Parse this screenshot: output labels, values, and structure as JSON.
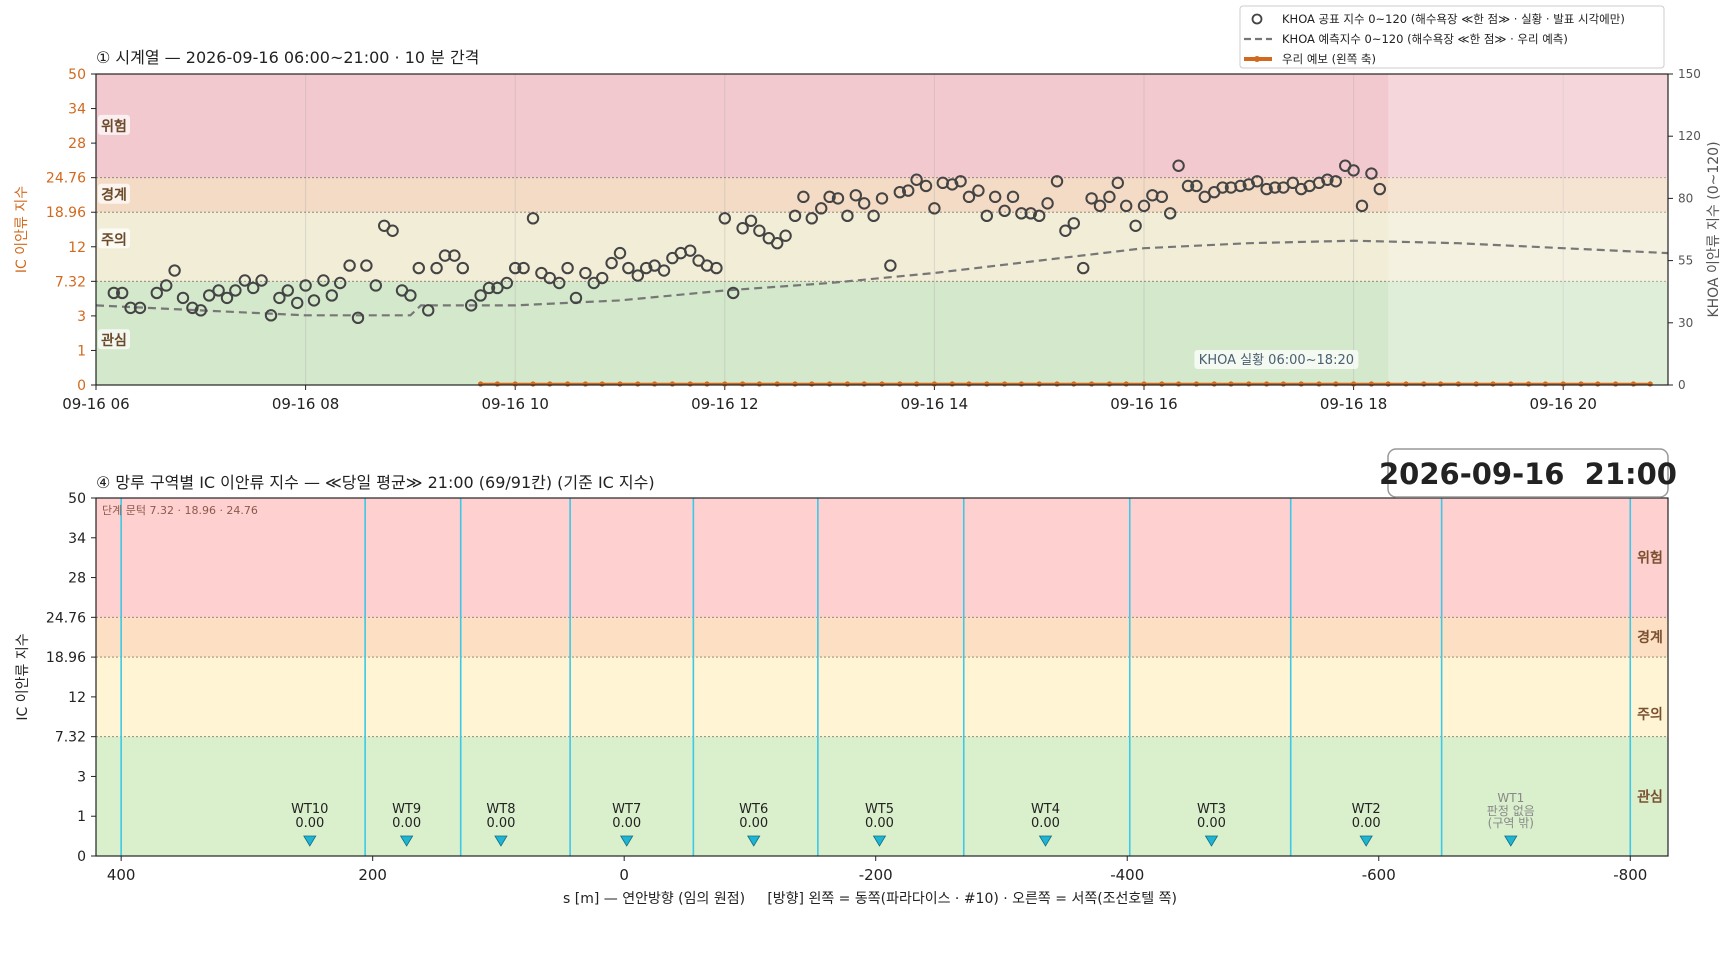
{
  "chart_data": [
    {
      "type": "line",
      "title": "① 시계열 — 2026-09-16 06:00~21:00 · 10 분 간격",
      "ylabel": "IC 이안류 지수",
      "ylabel_right": "KHOA 이안류 지수 (0~120)",
      "x_ticks": [
        "09-16 06",
        "09-16 08",
        "09-16 10",
        "09-16 12",
        "09-16 14",
        "09-16 16",
        "09-16 18",
        "09-16 20"
      ],
      "x_range_hours": [
        6,
        21
      ],
      "y_ticks": [
        0,
        1,
        3,
        7.32,
        12,
        18.96,
        24.76,
        28,
        34,
        50
      ],
      "y2_ticks": [
        0,
        30,
        55,
        80,
        120,
        150
      ],
      "zones": [
        {
          "label": "위험",
          "from": 24.76,
          "to": 50,
          "color": "#f2c9cf"
        },
        {
          "label": "경계",
          "from": 18.96,
          "to": 24.76,
          "color": "#f3dbc5"
        },
        {
          "label": "주의",
          "from": 7.32,
          "to": 18.96,
          "color": "#f1edd6"
        },
        {
          "label": "관심",
          "from": 0,
          "to": 7.32,
          "color": "#d4e8cc"
        }
      ],
      "legend": [
        "KHOA 공표 지수 0~120 (해수욕장 ≪한 점≫ · 실황 · 발표 시각에만)",
        "KHOA 예측지수 0~120 (해수욕장 ≪한 점≫ · 우리 예측)",
        "우리 예보 (왼쪽 축)"
      ],
      "legend_position": "top-right",
      "annotation": "KHOA 실황 06:00~18:20",
      "observed_end_hour": 18.33,
      "series": [
        {
          "name": "KHOA 공표 지수 0~120 (해수욕장 ≪한 점≫ · 실황 · 발표 시각에만)",
          "axis": "right",
          "style": "circle",
          "x_hours": [
            6.17,
            6.25,
            6.33,
            6.42,
            6.58,
            6.67,
            6.75,
            6.83,
            6.92,
            7.0,
            7.08,
            7.17,
            7.25,
            7.33,
            7.42,
            7.5,
            7.58,
            7.67,
            7.75,
            7.83,
            7.92,
            8.0,
            8.08,
            8.17,
            8.25,
            8.33,
            8.42,
            8.5,
            8.58,
            8.67,
            8.75,
            8.83,
            8.92,
            9.0,
            9.08,
            9.17,
            9.25,
            9.33,
            9.42,
            9.5,
            9.58,
            9.67,
            9.75,
            9.83,
            9.92,
            10.0,
            10.08,
            10.17,
            10.25,
            10.33,
            10.42,
            10.5,
            10.58,
            10.67,
            10.75,
            10.83,
            10.92,
            11.0,
            11.08,
            11.17,
            11.25,
            11.33,
            11.42,
            11.5,
            11.58,
            11.67,
            11.75,
            11.83,
            11.92,
            12.0,
            12.08,
            12.17,
            12.25,
            12.33,
            12.42,
            12.5,
            12.58,
            12.67,
            12.75,
            12.83,
            12.92,
            13.0,
            13.08,
            13.17,
            13.25,
            13.33,
            13.42,
            13.5,
            13.58,
            13.67,
            13.75,
            13.83,
            13.92,
            14.0,
            14.08,
            14.17,
            14.25,
            14.33,
            14.42,
            14.5,
            14.58,
            14.67,
            14.75,
            14.83,
            14.92,
            15.0,
            15.08,
            15.17,
            15.25,
            15.33,
            15.42,
            15.5,
            15.58,
            15.67,
            15.75,
            15.83,
            15.92,
            16.0,
            16.08,
            16.17,
            16.25,
            16.33,
            16.42,
            16.5,
            16.58,
            16.67,
            16.75,
            16.83,
            16.92,
            17.0,
            17.08,
            17.17,
            17.25,
            17.33,
            17.42,
            17.5,
            17.58,
            17.67,
            17.75,
            17.83,
            17.92,
            18.0,
            18.08,
            18.17,
            18.25
          ],
          "values": [
            42,
            42,
            36,
            36,
            42,
            45,
            51,
            40,
            36,
            35,
            41,
            43,
            40,
            43,
            47,
            44,
            47,
            33,
            40,
            43,
            38,
            45,
            39,
            47,
            41,
            46,
            53,
            32,
            53,
            45,
            69,
            67,
            43,
            41,
            52,
            35,
            52,
            57,
            57,
            52,
            37,
            41,
            44,
            44,
            46,
            52,
            52,
            72,
            50,
            48,
            46,
            52,
            40,
            50,
            46,
            48,
            54,
            58,
            52,
            49,
            52,
            53,
            51,
            56,
            58,
            59,
            55,
            53,
            52,
            72,
            42,
            68,
            71,
            67,
            64,
            62,
            65,
            73,
            81,
            72,
            76,
            81,
            80,
            73,
            82,
            78,
            73,
            80,
            53,
            84,
            85,
            92,
            88,
            76,
            90,
            89,
            91,
            81,
            85,
            73,
            81,
            75,
            81,
            74,
            74,
            73,
            78,
            91,
            67,
            70,
            52,
            80,
            77,
            81,
            90,
            77,
            69,
            77,
            82,
            81,
            74,
            101,
            88,
            88,
            81,
            84,
            87,
            87,
            88,
            89,
            91,
            86,
            87,
            87,
            90,
            86,
            88,
            90,
            92,
            91,
            101,
            98,
            77,
            96,
            86
          ]
        },
        {
          "name": "KHOA 예측지수 0~120 (해수욕장 ≪한 점≫ · 우리 예측)",
          "axis": "right",
          "style": "dashed",
          "x_hours": [
            6.0,
            7.0,
            8.0,
            9.0,
            9.1,
            10.0,
            11.0,
            12.0,
            13.0,
            14.0,
            15.0,
            16.0,
            17.0,
            18.0,
            19.0,
            20.0,
            21.0
          ],
          "values": [
            37,
            35,
            33,
            33,
            37,
            37,
            39,
            43,
            46,
            50,
            55,
            60,
            62,
            63,
            62,
            60,
            58
          ]
        },
        {
          "name": "우리 예보 (왼쪽 축)",
          "axis": "left",
          "style": "line-marker",
          "x_hours": [
            9.67,
            9.83,
            10.0,
            10.17,
            10.33,
            10.5,
            10.67,
            10.83,
            11.0,
            11.17,
            11.33,
            11.5,
            11.67,
            11.83,
            12.0,
            12.17,
            12.33,
            12.5,
            12.67,
            12.83,
            13.0,
            13.17,
            13.33,
            13.5,
            13.67,
            13.83,
            14.0,
            14.17,
            14.33,
            14.5,
            14.67,
            14.83,
            15.0,
            15.17,
            15.33,
            15.5,
            15.67,
            15.83,
            16.0,
            16.17,
            16.33,
            16.5,
            16.67,
            16.83,
            17.0,
            17.17,
            17.33,
            17.5,
            17.67,
            17.83,
            18.0,
            18.17,
            18.33,
            18.5,
            18.67,
            18.83,
            19.0,
            19.17,
            19.33,
            19.5,
            19.67,
            19.83,
            20.0,
            20.17,
            20.33,
            20.5,
            20.67,
            20.83
          ],
          "values": [
            0,
            0,
            0,
            0,
            0,
            0,
            0,
            0,
            0,
            0,
            0,
            0,
            0,
            0,
            0,
            0,
            0,
            0,
            0,
            0,
            0,
            0,
            0,
            0,
            0,
            0,
            0,
            0,
            0,
            0,
            0,
            0,
            0,
            0,
            0,
            0,
            0,
            0,
            0,
            0,
            0,
            0,
            0,
            0,
            0,
            0,
            0,
            0,
            0,
            0,
            0,
            0,
            0,
            0,
            0,
            0,
            0,
            0,
            0,
            0,
            0,
            0,
            0,
            0,
            0,
            0,
            0,
            0
          ]
        }
      ]
    },
    {
      "type": "bar",
      "title": "④ 망루 구역별 IC 이안류 지수 — ≪당일 평균≫ 21:00  (69/91칸)   (기준 IC 지수)",
      "timestamp_box": "2026-09-16  21:00",
      "note": "단계 문턱 7.32 · 18.96 · 24.76",
      "ylabel": "IC 이안류 지수",
      "xlabel": "s [m] — 연안방향 (임의 원점)     [방향] 왼쪽 = 동쪽(파라다이스 · #10) · 오른쪽 = 서쪽(조선호텔 쪽)",
      "x_ticks": [
        400,
        200,
        0,
        -200,
        -400,
        -600,
        -800
      ],
      "xlim": [
        420,
        -830
      ],
      "y_ticks": [
        0,
        1,
        3,
        7.32,
        12,
        18.96,
        24.76,
        28,
        34,
        50
      ],
      "zones": [
        {
          "label": "위험",
          "from": 24.76,
          "to": 50,
          "color": "#ffd0d0"
        },
        {
          "label": "경계",
          "from": 18.96,
          "to": 24.76,
          "color": "#fde0c4"
        },
        {
          "label": "주의",
          "from": 7.32,
          "to": 18.96,
          "color": "#fff5d4"
        },
        {
          "label": "관심",
          "from": 0,
          "to": 7.32,
          "color": "#daf0cc"
        }
      ],
      "boundaries": [
        400,
        206,
        130,
        43,
        -55,
        -154,
        -270,
        -402,
        -530,
        -650,
        -800
      ],
      "towers": [
        {
          "name": "WT10",
          "s": 250,
          "value": "0.00"
        },
        {
          "name": "WT9",
          "s": 173,
          "value": "0.00"
        },
        {
          "name": "WT8",
          "s": 98,
          "value": "0.00"
        },
        {
          "name": "WT7",
          "s": -2,
          "value": "0.00"
        },
        {
          "name": "WT6",
          "s": -103,
          "value": "0.00"
        },
        {
          "name": "WT5",
          "s": -203,
          "value": "0.00"
        },
        {
          "name": "WT4",
          "s": -335,
          "value": "0.00"
        },
        {
          "name": "WT3",
          "s": -467,
          "value": "0.00"
        },
        {
          "name": "WT2",
          "s": -590,
          "value": "0.00"
        },
        {
          "name": "WT1",
          "s": -705,
          "value": "판정 없음",
          "value2": "(구역 밖)"
        }
      ]
    }
  ]
}
